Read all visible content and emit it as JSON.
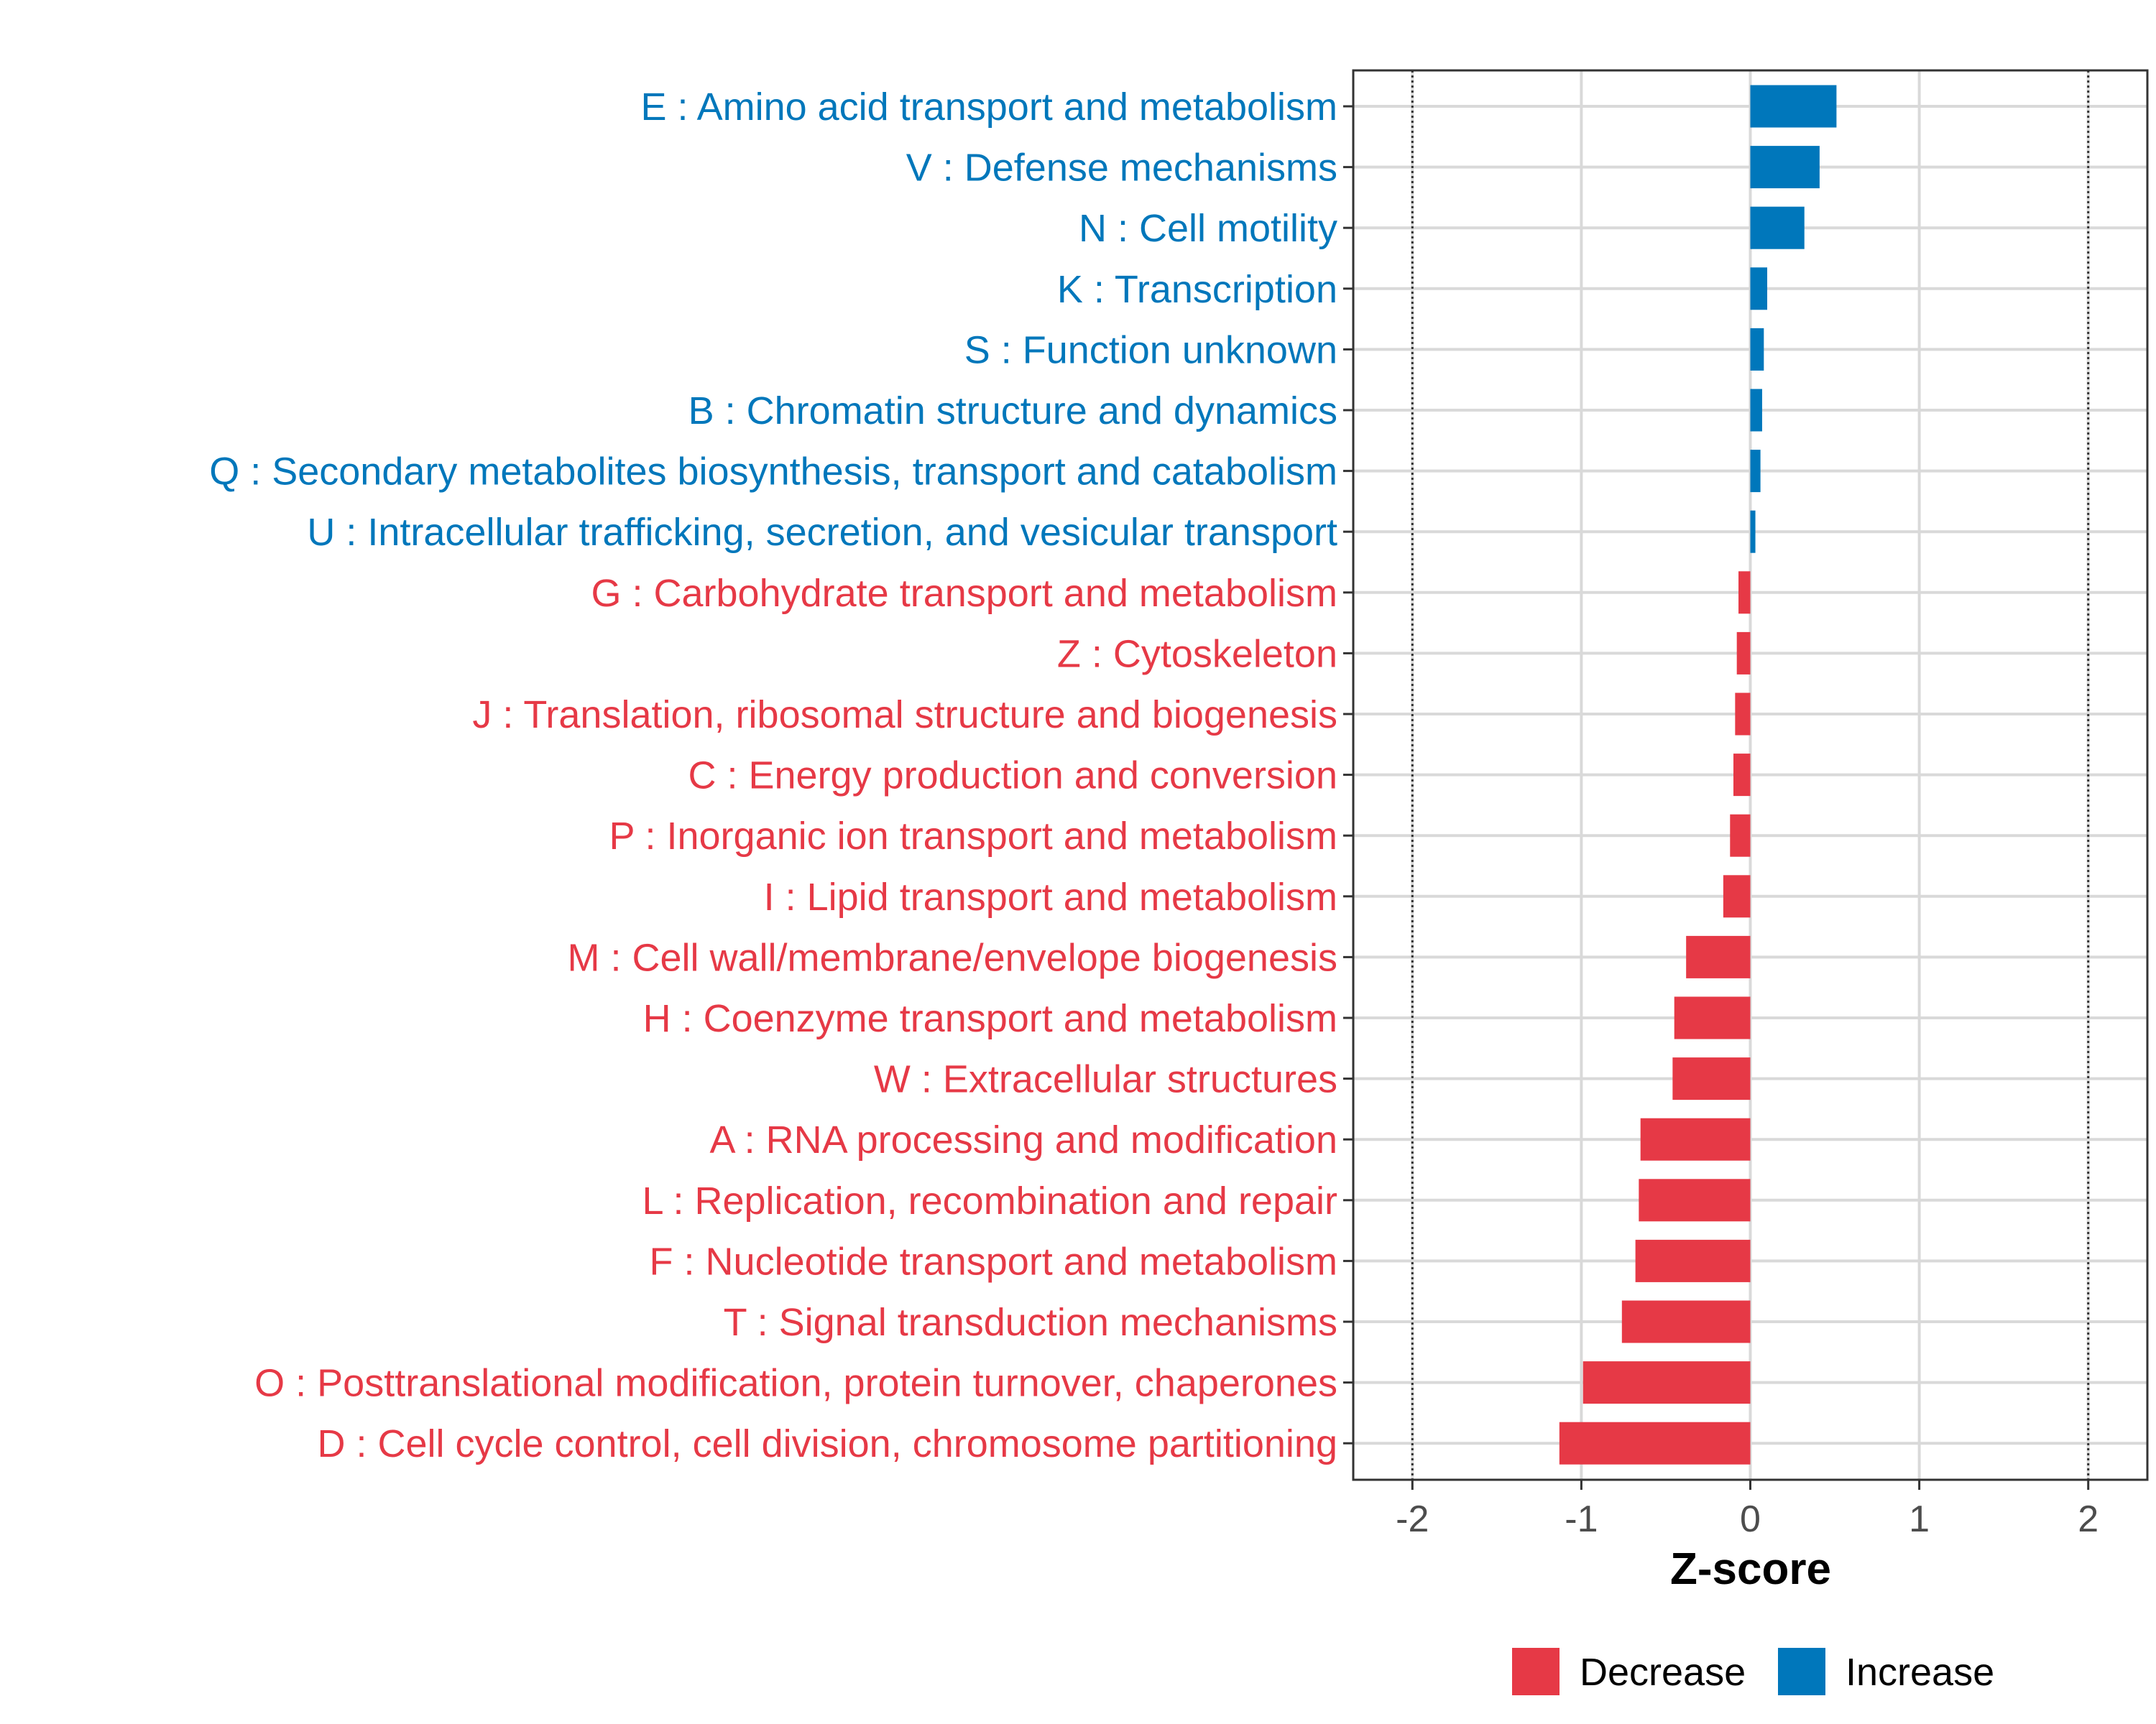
{
  "chart_data": {
    "type": "bar",
    "orientation": "horizontal",
    "xlabel": "Z-score",
    "ylabel": "",
    "xlim": [
      -2.35,
      2.35
    ],
    "xticks": [
      -2,
      -1,
      0,
      1,
      2
    ],
    "xtick_labels": [
      "-2",
      "-1",
      "0",
      "1",
      "2"
    ],
    "reference_lines": [
      -2,
      2
    ],
    "grid": true,
    "colors": {
      "Increase": "#0077bb",
      "Decrease": "#e63946"
    },
    "categories": [
      "E : Amino acid transport and metabolism",
      "V : Defense mechanisms",
      "N : Cell motility",
      "K : Transcription",
      "S : Function unknown",
      "B : Chromatin structure and dynamics",
      "Q : Secondary metabolites biosynthesis, transport and catabolism",
      "U : Intracellular trafficking, secretion, and vesicular transport",
      "G : Carbohydrate transport and metabolism",
      "Z : Cytoskeleton",
      "J : Translation, ribosomal structure and biogenesis",
      "C : Energy production and conversion",
      "P : Inorganic ion transport and metabolism",
      "I : Lipid transport and metabolism",
      "M : Cell wall/membrane/envelope biogenesis",
      "H : Coenzyme transport and metabolism",
      "W : Extracellular structures",
      "A : RNA processing and modification",
      "L : Replication, recombination and repair",
      "F : Nucleotide transport and metabolism",
      "T : Signal transduction mechanisms",
      "O : Posttranslational modification, protein turnover, chaperones",
      "D : Cell cycle control, cell division, chromosome partitioning"
    ],
    "values": [
      0.51,
      0.41,
      0.32,
      0.1,
      0.08,
      0.07,
      0.06,
      0.03,
      -0.07,
      -0.08,
      -0.09,
      -0.1,
      -0.12,
      -0.16,
      -0.38,
      -0.45,
      -0.46,
      -0.65,
      -0.66,
      -0.68,
      -0.76,
      -0.99,
      -1.13
    ],
    "groups": [
      "Increase",
      "Increase",
      "Increase",
      "Increase",
      "Increase",
      "Increase",
      "Increase",
      "Increase",
      "Decrease",
      "Decrease",
      "Decrease",
      "Decrease",
      "Decrease",
      "Decrease",
      "Decrease",
      "Decrease",
      "Decrease",
      "Decrease",
      "Decrease",
      "Decrease",
      "Decrease",
      "Decrease",
      "Decrease"
    ],
    "legend": {
      "position": "bottom",
      "entries": [
        "Decrease",
        "Increase"
      ]
    }
  }
}
